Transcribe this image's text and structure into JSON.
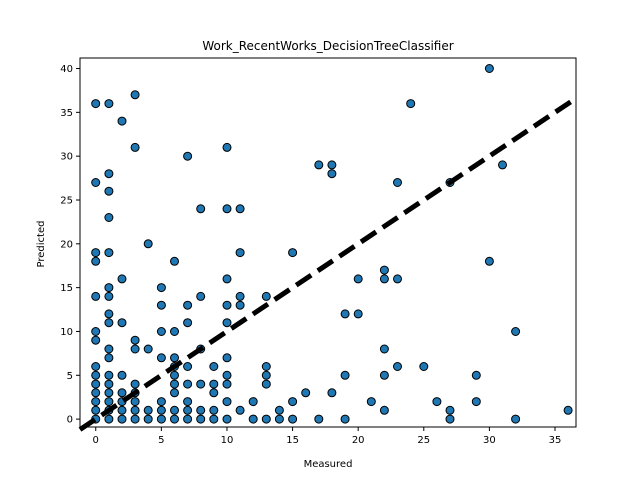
{
  "chart_data": {
    "type": "scatter",
    "title": "Work_RecentWorks_DecisionTreeClassifier",
    "xlabel": "Measured",
    "ylabel": "Predicted",
    "xlim": [
      -1.2,
      36.6
    ],
    "ylim": [
      -0.9,
      41.2
    ],
    "xticks": [
      0,
      5,
      10,
      15,
      20,
      25,
      30,
      35
    ],
    "yticks": [
      0,
      5,
      10,
      15,
      20,
      25,
      30,
      35,
      40
    ],
    "grid": false,
    "marker_color": "#1f77b4",
    "marker_edge_color": "#000000",
    "fit_line": {
      "style": "dashed",
      "color": "#000000",
      "x": [
        -1.2,
        36.6
      ],
      "y": [
        -1.2,
        36.6
      ]
    },
    "points": [
      [
        0,
        36
      ],
      [
        1,
        36
      ],
      [
        3,
        37
      ],
      [
        2,
        34
      ],
      [
        3,
        31
      ],
      [
        0,
        27
      ],
      [
        1,
        28
      ],
      [
        1,
        26
      ],
      [
        1,
        23
      ],
      [
        0,
        19
      ],
      [
        1,
        19
      ],
      [
        0,
        18
      ],
      [
        0,
        14
      ],
      [
        1,
        15
      ],
      [
        1,
        14
      ],
      [
        2,
        16
      ],
      [
        1,
        12
      ],
      [
        1,
        11
      ],
      [
        2,
        11
      ],
      [
        0,
        10
      ],
      [
        0,
        9
      ],
      [
        1,
        8
      ],
      [
        1,
        7
      ],
      [
        0,
        6
      ],
      [
        0,
        5
      ],
      [
        0,
        4
      ],
      [
        0,
        3
      ],
      [
        0,
        2
      ],
      [
        0,
        1
      ],
      [
        0,
        0
      ],
      [
        1,
        5
      ],
      [
        1,
        4
      ],
      [
        1,
        3
      ],
      [
        1,
        2
      ],
      [
        1,
        1
      ],
      [
        1,
        0
      ],
      [
        2,
        5
      ],
      [
        2,
        3
      ],
      [
        2,
        2
      ],
      [
        2,
        1
      ],
      [
        2,
        0
      ],
      [
        3,
        4
      ],
      [
        3,
        3
      ],
      [
        3,
        2
      ],
      [
        3,
        1
      ],
      [
        3,
        0
      ],
      [
        4,
        1
      ],
      [
        4,
        0
      ],
      [
        3,
        9
      ],
      [
        3,
        8
      ],
      [
        4,
        8
      ],
      [
        4,
        20
      ],
      [
        5,
        15
      ],
      [
        5,
        13
      ],
      [
        5,
        10
      ],
      [
        5,
        7
      ],
      [
        5,
        2
      ],
      [
        5,
        1
      ],
      [
        5,
        0
      ],
      [
        6,
        18
      ],
      [
        6,
        10
      ],
      [
        6,
        7
      ],
      [
        6,
        6
      ],
      [
        6,
        5
      ],
      [
        6,
        4
      ],
      [
        6,
        3
      ],
      [
        6,
        1
      ],
      [
        6,
        0
      ],
      [
        7,
        30
      ],
      [
        7,
        13
      ],
      [
        7,
        11
      ],
      [
        7,
        6
      ],
      [
        7,
        4
      ],
      [
        7,
        2
      ],
      [
        7,
        1
      ],
      [
        7,
        0
      ],
      [
        8,
        24
      ],
      [
        8,
        14
      ],
      [
        8,
        8
      ],
      [
        8,
        4
      ],
      [
        8,
        1
      ],
      [
        8,
        0
      ],
      [
        9,
        6
      ],
      [
        9,
        4
      ],
      [
        9,
        3
      ],
      [
        9,
        1
      ],
      [
        9,
        0
      ],
      [
        10,
        31
      ],
      [
        10,
        24
      ],
      [
        10,
        16
      ],
      [
        10,
        13
      ],
      [
        10,
        11
      ],
      [
        10,
        7
      ],
      [
        10,
        5
      ],
      [
        10,
        4
      ],
      [
        10,
        2
      ],
      [
        10,
        0
      ],
      [
        11,
        24
      ],
      [
        11,
        19
      ],
      [
        11,
        14
      ],
      [
        11,
        13
      ],
      [
        11,
        1
      ],
      [
        12,
        2
      ],
      [
        12,
        0
      ],
      [
        13,
        14
      ],
      [
        13,
        6
      ],
      [
        13,
        5
      ],
      [
        13,
        4
      ],
      [
        13,
        0
      ],
      [
        14,
        1
      ],
      [
        14,
        0
      ],
      [
        15,
        19
      ],
      [
        15,
        2
      ],
      [
        15,
        0
      ],
      [
        16,
        3
      ],
      [
        17,
        29
      ],
      [
        17,
        0
      ],
      [
        18,
        29
      ],
      [
        18,
        28
      ],
      [
        18,
        3
      ],
      [
        19,
        12
      ],
      [
        19,
        5
      ],
      [
        19,
        0
      ],
      [
        20,
        16
      ],
      [
        20,
        12
      ],
      [
        21,
        2
      ],
      [
        22,
        17
      ],
      [
        22,
        16
      ],
      [
        22,
        8
      ],
      [
        22,
        5
      ],
      [
        22,
        1
      ],
      [
        23,
        27
      ],
      [
        23,
        16
      ],
      [
        23,
        6
      ],
      [
        24,
        36
      ],
      [
        25,
        6
      ],
      [
        26,
        2
      ],
      [
        27,
        27
      ],
      [
        27,
        1
      ],
      [
        27,
        0
      ],
      [
        29,
        5
      ],
      [
        29,
        2
      ],
      [
        30,
        40
      ],
      [
        30,
        18
      ],
      [
        31,
        29
      ],
      [
        32,
        10
      ],
      [
        32,
        0
      ],
      [
        36,
        1
      ]
    ]
  }
}
